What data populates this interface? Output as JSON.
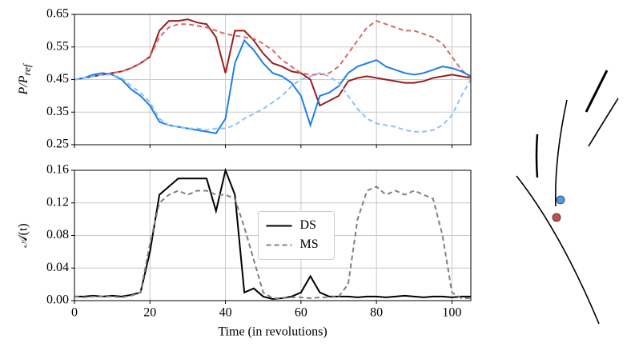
{
  "chart_data": [
    {
      "type": "line",
      "ylabel": {
        "main": "P/P",
        "sub": "ref"
      },
      "x": [
        0,
        2.5,
        5,
        7.5,
        10,
        12.5,
        15,
        17.5,
        20,
        22.5,
        25,
        27.5,
        30,
        32.5,
        35,
        37.5,
        40,
        42.5,
        45,
        47.5,
        50,
        52.5,
        55,
        57.5,
        60,
        62.5,
        65,
        67.5,
        70,
        72.5,
        75,
        77.5,
        80,
        82.5,
        85,
        87.5,
        90,
        92.5,
        95,
        97.5,
        100,
        102.5,
        105
      ],
      "xlim": [
        0,
        105
      ],
      "xticks": [
        0,
        20,
        40,
        60,
        80,
        100
      ],
      "show_xtick_labels": false,
      "ylim": [
        0.25,
        0.65
      ],
      "yticks": [
        0.25,
        0.35,
        0.45,
        0.55,
        0.65
      ],
      "grid": true,
      "series": [
        {
          "color": "#9b1c1c",
          "dash": false,
          "values": [
            0.45,
            0.455,
            0.46,
            0.465,
            0.47,
            0.475,
            0.485,
            0.5,
            0.52,
            0.6,
            0.63,
            0.63,
            0.635,
            0.625,
            0.62,
            0.58,
            0.47,
            0.6,
            0.6,
            0.57,
            0.53,
            0.5,
            0.49,
            0.475,
            0.47,
            0.45,
            0.37,
            0.385,
            0.4,
            0.445,
            0.455,
            0.46,
            0.455,
            0.45,
            0.445,
            0.44,
            0.44,
            0.445,
            0.455,
            0.46,
            0.465,
            0.46,
            0.455
          ]
        },
        {
          "color": "#d9686a",
          "dash": true,
          "values": [
            0.45,
            0.455,
            0.46,
            0.465,
            0.47,
            0.475,
            0.485,
            0.5,
            0.52,
            0.58,
            0.61,
            0.62,
            0.62,
            0.615,
            0.61,
            0.6,
            0.59,
            0.585,
            0.58,
            0.575,
            0.56,
            0.54,
            0.51,
            0.49,
            0.47,
            0.465,
            0.465,
            0.47,
            0.49,
            0.53,
            0.57,
            0.61,
            0.63,
            0.62,
            0.61,
            0.6,
            0.6,
            0.59,
            0.58,
            0.56,
            0.52,
            0.48,
            0.455
          ]
        },
        {
          "color": "#1f7fe6",
          "dash": false,
          "values": [
            0.45,
            0.455,
            0.465,
            0.47,
            0.465,
            0.45,
            0.42,
            0.4,
            0.37,
            0.32,
            0.31,
            0.305,
            0.3,
            0.295,
            0.29,
            0.285,
            0.33,
            0.5,
            0.57,
            0.54,
            0.5,
            0.47,
            0.46,
            0.44,
            0.4,
            0.31,
            0.4,
            0.41,
            0.43,
            0.47,
            0.49,
            0.5,
            0.51,
            0.49,
            0.48,
            0.47,
            0.465,
            0.47,
            0.48,
            0.49,
            0.485,
            0.475,
            0.46
          ]
        },
        {
          "color": "#8fc2f5",
          "dash": true,
          "values": [
            0.45,
            0.455,
            0.46,
            0.465,
            0.465,
            0.455,
            0.43,
            0.41,
            0.38,
            0.33,
            0.31,
            0.305,
            0.3,
            0.3,
            0.295,
            0.3,
            0.3,
            0.31,
            0.33,
            0.345,
            0.36,
            0.38,
            0.4,
            0.43,
            0.45,
            0.46,
            0.47,
            0.46,
            0.44,
            0.4,
            0.36,
            0.33,
            0.315,
            0.31,
            0.305,
            0.295,
            0.29,
            0.29,
            0.295,
            0.31,
            0.34,
            0.4,
            0.45
          ]
        }
      ]
    },
    {
      "type": "line",
      "ylabel": "𝒜(t)",
      "xlabel": "Time (in revolutions)",
      "x": [
        0,
        2.5,
        5,
        7.5,
        10,
        12.5,
        15,
        17.5,
        20,
        22.5,
        25,
        27.5,
        30,
        32.5,
        35,
        37.5,
        40,
        42.5,
        45,
        47.5,
        50,
        52.5,
        55,
        57.5,
        60,
        62.5,
        65,
        67.5,
        70,
        72.5,
        75,
        77.5,
        80,
        82.5,
        85,
        87.5,
        90,
        92.5,
        95,
        97.5,
        100,
        102.5,
        105
      ],
      "xlim": [
        0,
        105
      ],
      "xticks": [
        0,
        20,
        40,
        60,
        80,
        100
      ],
      "show_xtick_labels": true,
      "ylim": [
        0,
        0.16
      ],
      "yticks": [
        {
          "value": 0,
          "label": "0.00"
        },
        0.04,
        0.08,
        0.12,
        0.16
      ],
      "grid": true,
      "legend": "center",
      "series": [
        {
          "name": "DS",
          "color": "#000000",
          "dash": false,
          "values": [
            0.005,
            0.005,
            0.006,
            0.005,
            0.006,
            0.005,
            0.007,
            0.01,
            0.06,
            0.13,
            0.14,
            0.15,
            0.15,
            0.15,
            0.15,
            0.11,
            0.16,
            0.13,
            0.01,
            0.015,
            0.005,
            0.002,
            0.003,
            0.005,
            0.01,
            0.03,
            0.01,
            0.005,
            0.005,
            0.005,
            0.004,
            0.005,
            0.005,
            0.004,
            0.005,
            0.006,
            0.005,
            0.004,
            0.005,
            0.005,
            0.004,
            0.005,
            0.005
          ]
        },
        {
          "name": "MS",
          "color": "#808080",
          "dash": true,
          "values": [
            0.005,
            0.004,
            0.005,
            0.005,
            0.005,
            0.004,
            0.006,
            0.01,
            0.07,
            0.12,
            0.13,
            0.135,
            0.13,
            0.135,
            0.135,
            0.13,
            0.13,
            0.125,
            0.09,
            0.05,
            0.01,
            0.003,
            0.003,
            0.004,
            0.004,
            0.003,
            0.004,
            0.004,
            0.005,
            0.02,
            0.1,
            0.135,
            0.14,
            0.13,
            0.135,
            0.13,
            0.135,
            0.13,
            0.125,
            0.08,
            0.01,
            0.003,
            0.003
          ]
        }
      ]
    }
  ]
}
